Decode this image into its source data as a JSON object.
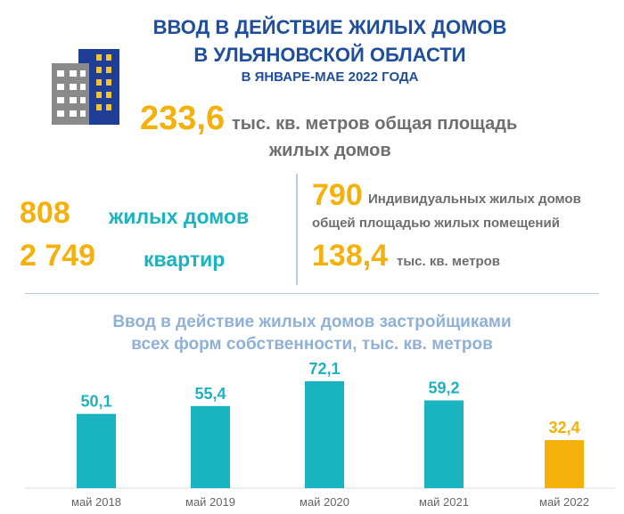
{
  "header": {
    "title_line1": "ВВОД В ДЕЙСТВИЕ ЖИЛЫХ ДОМОВ",
    "title_line2": "В УЛЬЯНОВСКОЙ ОБЛАСТИ",
    "subtitle": "В ЯНВАРЕ-МАЕ 2022 ГОДА",
    "building_icon": "apartment-building-icon"
  },
  "total_area": {
    "value": "233,6",
    "label_line1": "тыс. кв. метров общая площадь",
    "label_line2": "жилых домов"
  },
  "left_stats": {
    "houses_value": "808",
    "houses_label": "жилых домов",
    "apartments_value": "2 749",
    "apartments_label": "квартир"
  },
  "right_stats": {
    "individual_value": "790",
    "individual_label_line1": "Индивидуальных жилых домов",
    "individual_label_line2": "общей площадью жилых помещений",
    "area_value": "138,4",
    "area_label": "тыс. кв. метров"
  },
  "colors": {
    "title_blue": "#1f4e9c",
    "accent_orange": "#f4b10b",
    "teal": "#1ab3c0",
    "chart_title": "#8fb1d8"
  },
  "chart_data": {
    "type": "bar",
    "title_line1": "Ввод в действие жилых домов застройщиками",
    "title_line2": "всех форм собственности, тыс. кв. метров",
    "categories": [
      "май 2018",
      "май 2019",
      "май 2020",
      "май 2021",
      "май 2022"
    ],
    "values": [
      50.1,
      55.4,
      72.1,
      59.2,
      32.4
    ],
    "value_labels": [
      "50,1",
      "55,4",
      "72,1",
      "59,2",
      "32,4"
    ],
    "bar_colors": [
      "#1ab3c0",
      "#1ab3c0",
      "#1ab3c0",
      "#1ab3c0",
      "#f4b10b"
    ],
    "label_colors": [
      "#1ab3c0",
      "#1ab3c0",
      "#1ab3c0",
      "#1ab3c0",
      "#f4b10b"
    ],
    "ylim": [
      0,
      72.1
    ],
    "grid": false
  }
}
